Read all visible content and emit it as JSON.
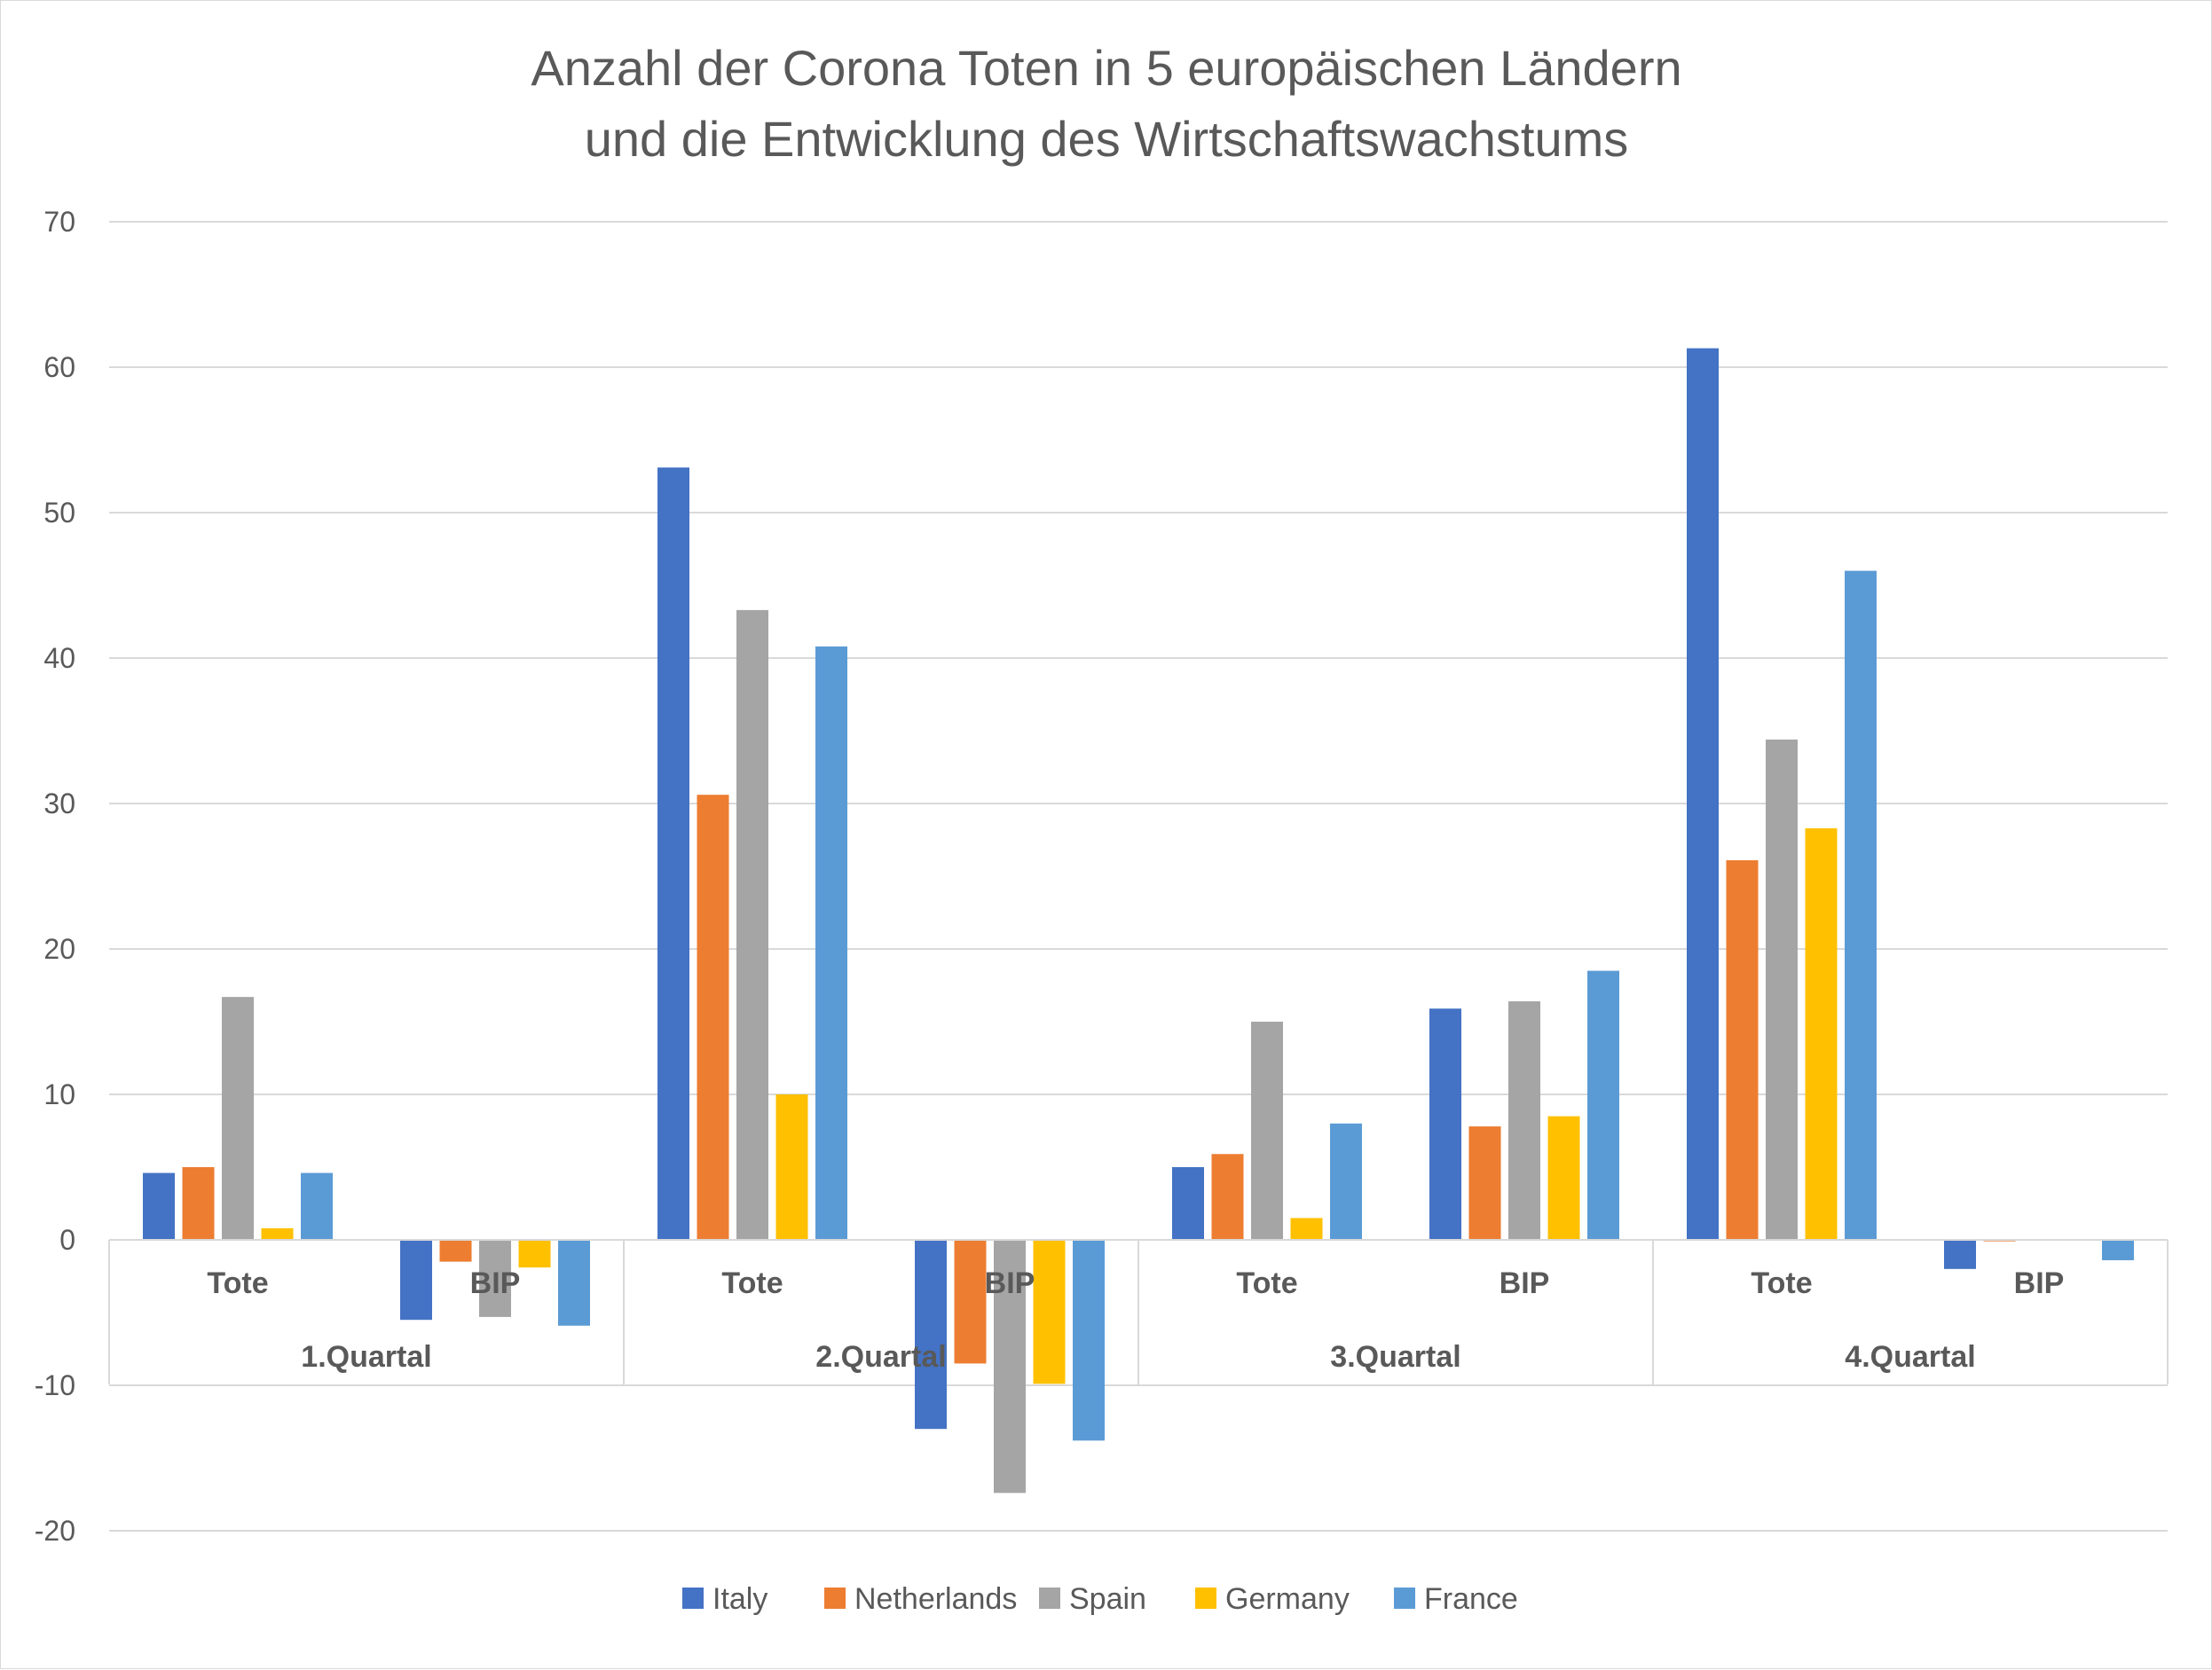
{
  "chart_data": {
    "type": "bar",
    "title_lines": [
      "Anzahl der Corona Toten in 5 europäischen Ländern",
      "und die Entwicklung des Wirtschaftswachstums"
    ],
    "ylim": [
      -20,
      70
    ],
    "yticks": [
      70,
      60,
      50,
      40,
      30,
      20,
      10,
      0,
      -10,
      -20
    ],
    "grid": true,
    "legend_position": "bottom",
    "groups": [
      {
        "label": "1.Quartal",
        "categories": [
          "Tote",
          "BIP"
        ]
      },
      {
        "label": "2.Quartal",
        "categories": [
          "Tote",
          "BIP"
        ]
      },
      {
        "label": "3.Quartal",
        "categories": [
          "Tote",
          "BIP"
        ]
      },
      {
        "label": "4.Quartal",
        "categories": [
          "Tote",
          "BIP"
        ]
      }
    ],
    "series": [
      {
        "name": "Italy",
        "color": "#4472C4",
        "values": [
          4.6,
          -5.5,
          53.1,
          -13.0,
          5.0,
          15.9,
          61.3,
          -2.0
        ]
      },
      {
        "name": "Netherlands",
        "color": "#ED7D31",
        "values": [
          5.0,
          -1.5,
          30.6,
          -8.5,
          5.9,
          7.8,
          26.1,
          -0.1
        ]
      },
      {
        "name": "Spain",
        "color": "#A5A5A5",
        "values": [
          16.7,
          -5.3,
          43.3,
          -17.4,
          15.0,
          16.4,
          34.4,
          0
        ]
      },
      {
        "name": "Germany",
        "color": "#FFC000",
        "values": [
          0.8,
          -1.9,
          10.0,
          -9.9,
          1.5,
          8.5,
          28.3,
          0
        ]
      },
      {
        "name": "France",
        "color": "#5B9BD5",
        "values": [
          4.6,
          -5.9,
          40.8,
          -13.8,
          8.0,
          18.5,
          46.0,
          -1.4
        ]
      }
    ]
  }
}
